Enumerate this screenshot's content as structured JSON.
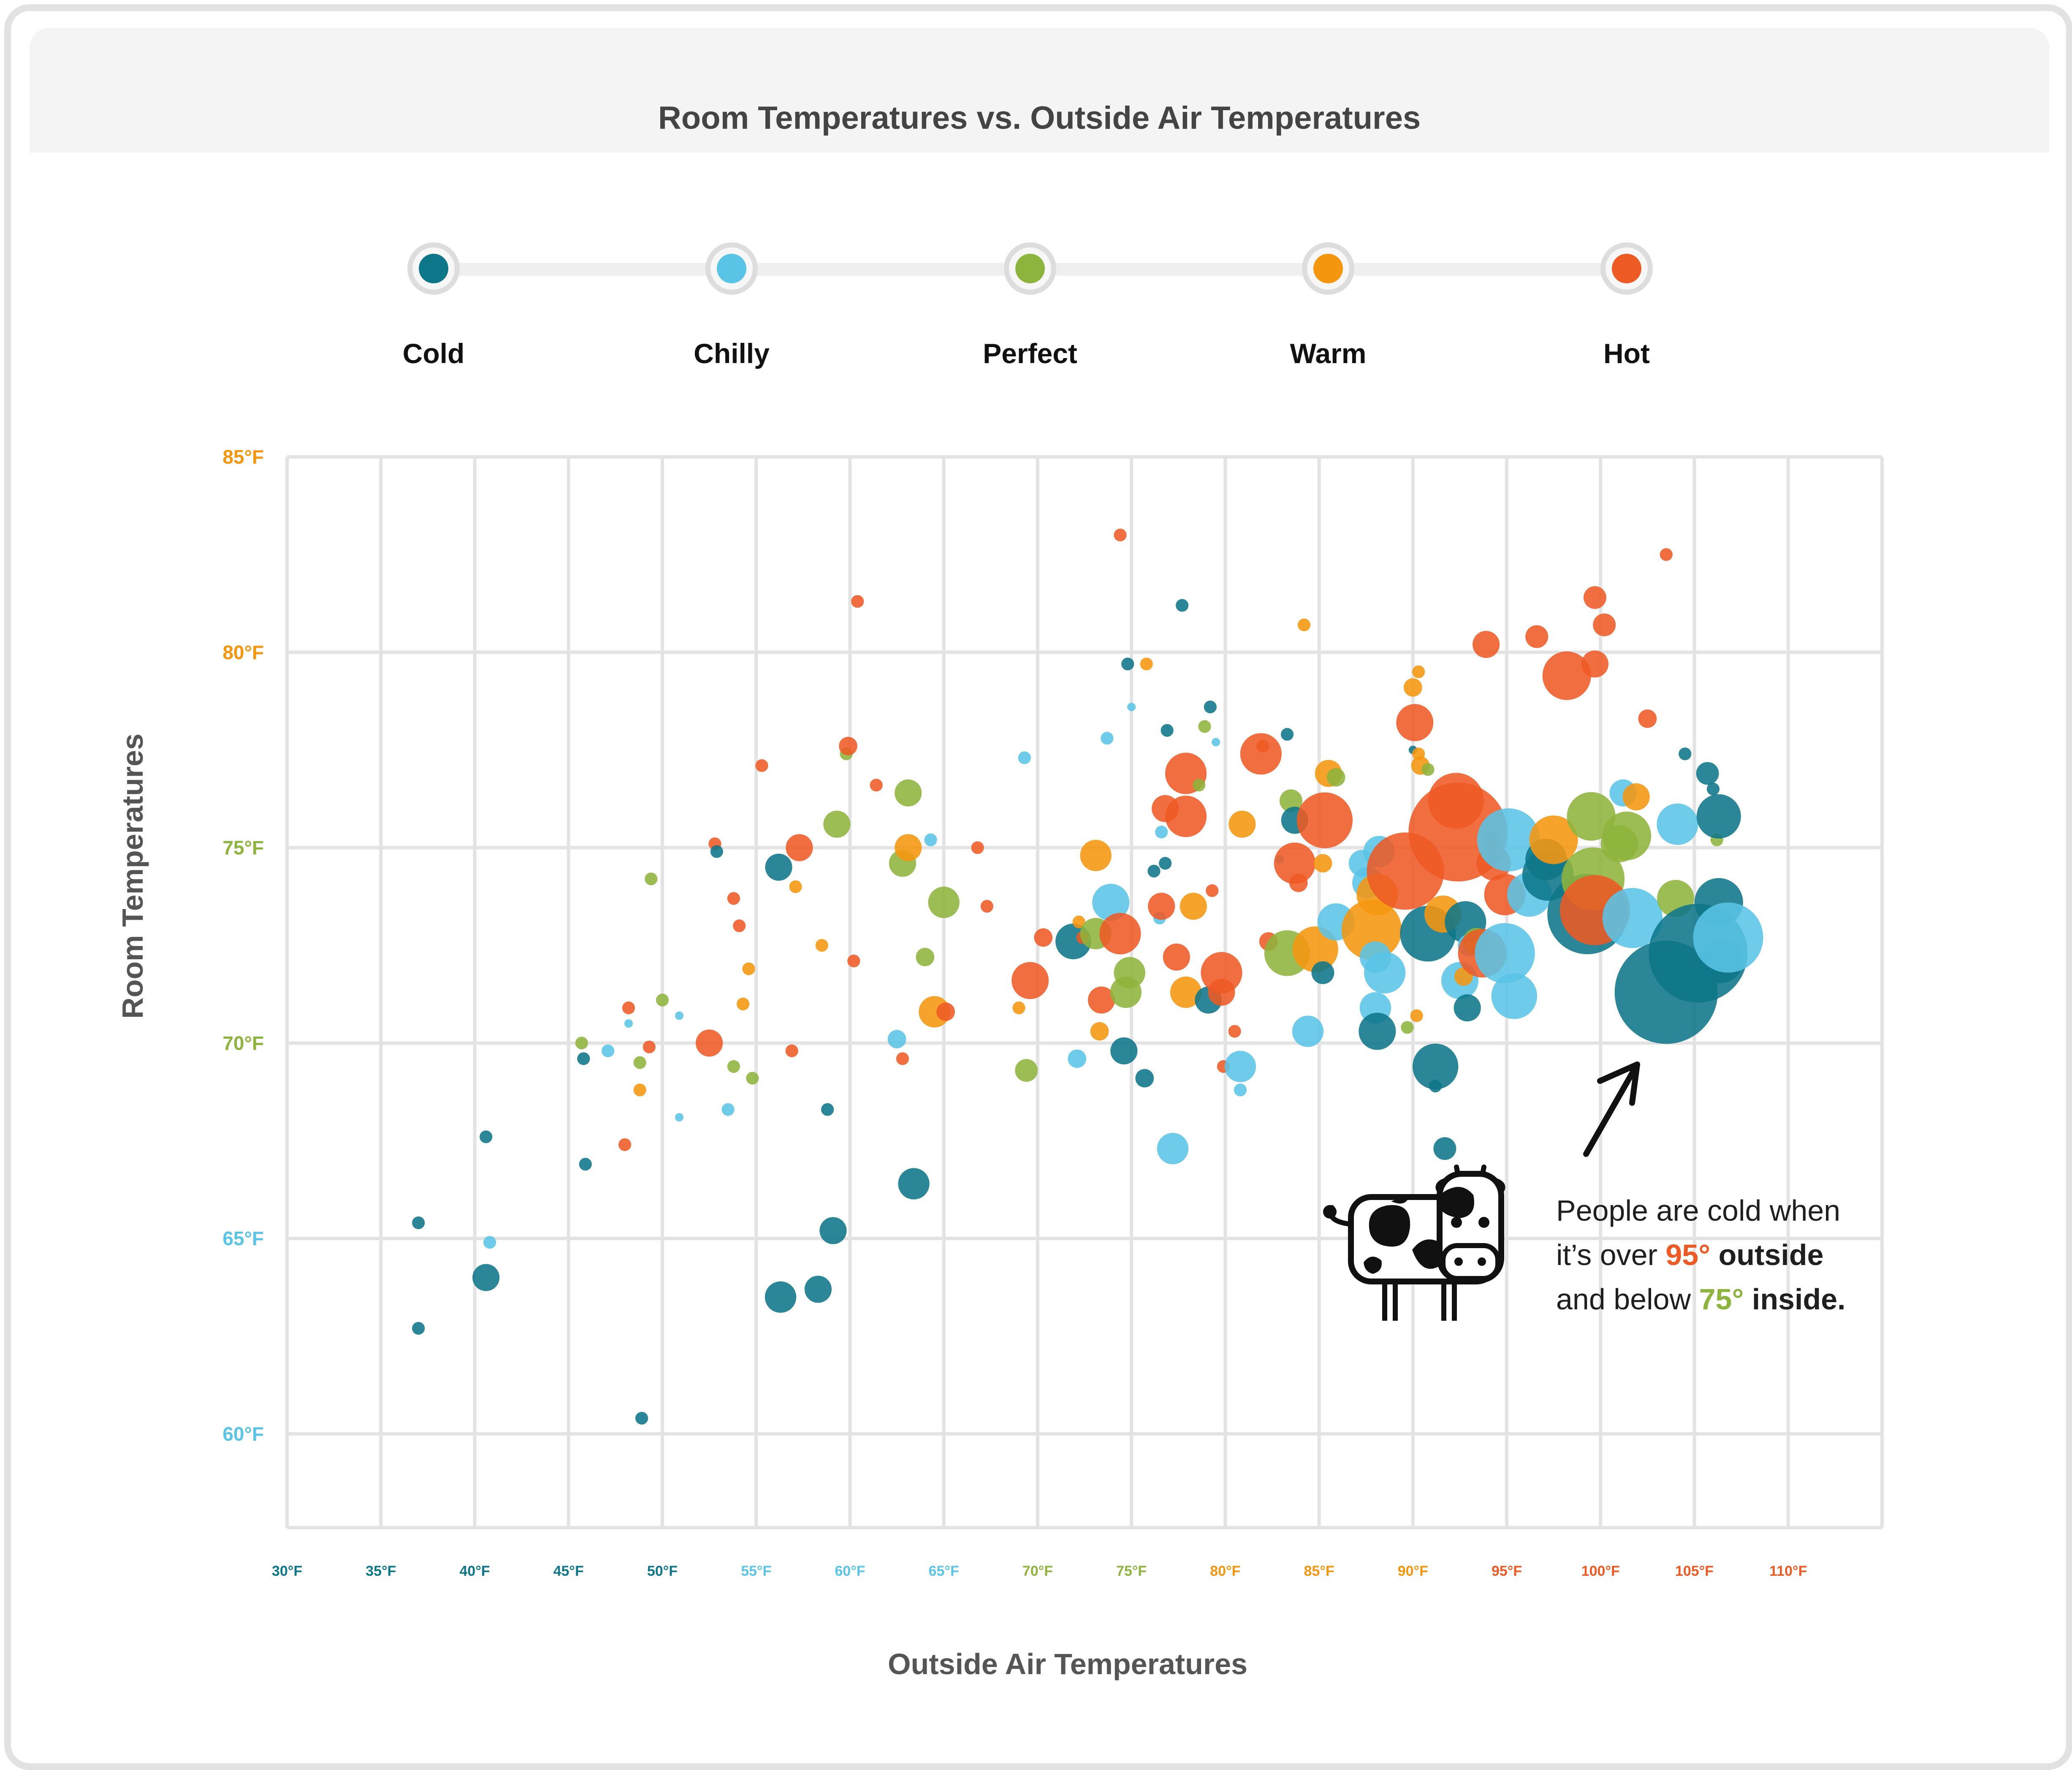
{
  "title": "Room Temperatures vs. Outside Air Temperatures",
  "legend": [
    {
      "label": "Cold",
      "color": "#0e7689"
    },
    {
      "label": "Chilly",
      "color": "#5ac4e6"
    },
    {
      "label": "Perfect",
      "color": "#8db43c"
    },
    {
      "label": "Warm",
      "color": "#f5960f"
    },
    {
      "label": "Hot",
      "color": "#ee5a24"
    }
  ],
  "annotation": {
    "line1": "People are cold when",
    "line2_pre": "it’s over ",
    "line2_hl": "95°",
    "line2_post": " outside",
    "line3_pre": "and below ",
    "line3_hl": "75°",
    "line3_post": " inside."
  },
  "chart_data": {
    "type": "scatter",
    "title": "Room Temperatures vs. Outside Air Temperatures",
    "xlabel": "Outside Air Temperatures",
    "ylabel": "Room Temperatures",
    "xlim": [
      30,
      115
    ],
    "ylim": [
      57.6,
      85
    ],
    "xticks": [
      {
        "v": 30,
        "label": "30°F",
        "color": "#0e7689"
      },
      {
        "v": 35,
        "label": "35°F",
        "color": "#0e7689"
      },
      {
        "v": 40,
        "label": "40°F",
        "color": "#0e7689"
      },
      {
        "v": 45,
        "label": "45°F",
        "color": "#0e7689"
      },
      {
        "v": 50,
        "label": "50°F",
        "color": "#0e7689"
      },
      {
        "v": 55,
        "label": "55°F",
        "color": "#5ac4e6"
      },
      {
        "v": 60,
        "label": "60°F",
        "color": "#5ac4e6"
      },
      {
        "v": 65,
        "label": "65°F",
        "color": "#5ac4e6"
      },
      {
        "v": 70,
        "label": "70°F",
        "color": "#8db43c"
      },
      {
        "v": 75,
        "label": "75°F",
        "color": "#8db43c"
      },
      {
        "v": 80,
        "label": "80°F",
        "color": "#f5960f"
      },
      {
        "v": 85,
        "label": "85°F",
        "color": "#f5960f"
      },
      {
        "v": 90,
        "label": "90°F",
        "color": "#f5960f"
      },
      {
        "v": 95,
        "label": "95°F",
        "color": "#ee5a24"
      },
      {
        "v": 100,
        "label": "100°F",
        "color": "#ee5a24"
      },
      {
        "v": 105,
        "label": "105°F",
        "color": "#ee5a24"
      },
      {
        "v": 110,
        "label": "110°F",
        "color": "#ee5a24"
      }
    ],
    "yticks": [
      {
        "v": 60,
        "label": "60°F",
        "color": "#5ac4e6"
      },
      {
        "v": 65,
        "label": "65°F",
        "color": "#5ac4e6"
      },
      {
        "v": 70,
        "label": "70°F",
        "color": "#8db43c"
      },
      {
        "v": 75,
        "label": "75°F",
        "color": "#8db43c"
      },
      {
        "v": 80,
        "label": "80°F",
        "color": "#f5960f"
      },
      {
        "v": 85,
        "label": "85°F",
        "color": "#f5960f"
      }
    ],
    "grid": true,
    "legend_placement": "top",
    "size_note": "bubble size is relative (1 = smallest)",
    "categories": [
      "Cold",
      "Chilly",
      "Perfect",
      "Warm",
      "Hot"
    ],
    "points": [
      [
        37,
        65.4,
        0,
        1
      ],
      [
        37,
        62.7,
        0,
        1
      ],
      [
        40.6,
        67.6,
        0,
        1
      ],
      [
        40.6,
        64,
        0,
        2
      ],
      [
        40.8,
        64.9,
        1,
        1
      ],
      [
        45.9,
        66.9,
        0,
        1
      ],
      [
        48.9,
        60.4,
        0,
        1
      ],
      [
        45.8,
        69.6,
        0,
        1
      ],
      [
        45.7,
        70,
        2,
        1
      ],
      [
        47.1,
        69.8,
        1,
        1
      ],
      [
        48.2,
        70.5,
        1,
        0.7
      ],
      [
        48.2,
        70.9,
        4,
        1
      ],
      [
        48.8,
        69.5,
        2,
        1
      ],
      [
        48.8,
        68.8,
        3,
        1
      ],
      [
        49.3,
        69.9,
        4,
        1
      ],
      [
        49.4,
        74.2,
        2,
        1
      ],
      [
        50,
        71.1,
        2,
        1
      ],
      [
        50.9,
        70.7,
        1,
        0.7
      ],
      [
        50.9,
        68.1,
        1,
        0.7
      ],
      [
        48,
        67.4,
        4,
        1
      ],
      [
        52.5,
        70,
        4,
        2
      ],
      [
        52.8,
        75.1,
        4,
        1
      ],
      [
        52.9,
        74.9,
        0,
        1
      ],
      [
        53.5,
        68.3,
        1,
        1
      ],
      [
        53.8,
        73.7,
        4,
        1
      ],
      [
        53.8,
        69.4,
        2,
        1
      ],
      [
        54.1,
        73,
        4,
        1
      ],
      [
        54.3,
        71,
        3,
        1
      ],
      [
        54.6,
        71.9,
        3,
        1
      ],
      [
        54.8,
        69.1,
        2,
        1
      ],
      [
        55.3,
        77.1,
        4,
        1
      ],
      [
        56.2,
        74.5,
        0,
        2
      ],
      [
        56.3,
        63.5,
        0,
        2.3
      ],
      [
        56.9,
        69.8,
        4,
        1
      ],
      [
        57.1,
        74,
        3,
        1
      ],
      [
        57.3,
        75,
        4,
        2
      ],
      [
        58.3,
        63.7,
        0,
        2
      ],
      [
        58.5,
        72.5,
        3,
        1
      ],
      [
        58.8,
        68.3,
        0,
        1
      ],
      [
        59.1,
        65.2,
        0,
        2
      ],
      [
        59.3,
        75.6,
        2,
        2
      ],
      [
        59.8,
        77.4,
        2,
        1
      ],
      [
        59.9,
        77.6,
        4,
        1.4
      ],
      [
        60.2,
        72.1,
        4,
        1
      ],
      [
        60.4,
        81.3,
        4,
        1
      ],
      [
        61.4,
        76.6,
        4,
        1
      ],
      [
        62.5,
        70.1,
        1,
        1.4
      ],
      [
        62.8,
        69.6,
        4,
        1
      ],
      [
        62.8,
        74.6,
        2,
        2
      ],
      [
        63.1,
        75,
        3,
        2
      ],
      [
        63.1,
        76.4,
        2,
        2
      ],
      [
        63.4,
        66.4,
        0,
        2.3
      ],
      [
        64,
        72.2,
        2,
        1.4
      ],
      [
        64.3,
        75.2,
        1,
        1
      ],
      [
        64.5,
        70.8,
        3,
        2.3
      ],
      [
        65,
        73.6,
        2,
        2.3
      ],
      [
        65.1,
        70.8,
        4,
        1.4
      ],
      [
        66.8,
        75,
        4,
        1
      ],
      [
        67.3,
        73.5,
        4,
        1
      ],
      [
        69,
        70.9,
        3,
        1
      ],
      [
        69.3,
        77.3,
        1,
        1
      ],
      [
        69.4,
        69.3,
        2,
        1.7
      ],
      [
        69.6,
        71.6,
        4,
        2.7
      ],
      [
        70.3,
        72.7,
        4,
        1.4
      ],
      [
        71.9,
        72.6,
        0,
        2.6
      ],
      [
        72.1,
        69.6,
        1,
        1.4
      ],
      [
        72.2,
        73.1,
        3,
        1
      ],
      [
        72.4,
        72.7,
        4,
        1
      ],
      [
        73.1,
        72.8,
        2,
        2.3
      ],
      [
        73.1,
        74.8,
        3,
        2.3
      ],
      [
        73.3,
        70.3,
        3,
        1.4
      ],
      [
        73.4,
        71.1,
        4,
        2
      ],
      [
        73.7,
        77.8,
        1,
        1
      ],
      [
        73.9,
        73.6,
        1,
        2.7
      ],
      [
        74.4,
        72.8,
        4,
        3
      ],
      [
        74.4,
        83,
        4,
        1
      ],
      [
        74.6,
        69.8,
        0,
        2
      ],
      [
        74.7,
        71.3,
        2,
        2.3
      ],
      [
        74.8,
        79.7,
        0,
        1
      ],
      [
        74.9,
        71.8,
        2,
        2.3
      ],
      [
        75,
        78.6,
        1,
        0.7
      ],
      [
        75.7,
        69.1,
        0,
        1.4
      ],
      [
        75.8,
        79.7,
        3,
        1
      ],
      [
        76.2,
        74.4,
        0,
        1
      ],
      [
        76.5,
        73.2,
        1,
        1
      ],
      [
        76.6,
        75.4,
        1,
        1
      ],
      [
        76.6,
        73.5,
        4,
        2
      ],
      [
        76.8,
        76,
        4,
        2
      ],
      [
        76.8,
        74.6,
        0,
        1
      ],
      [
        76.9,
        78,
        0,
        1
      ],
      [
        77.2,
        67.3,
        1,
        2.3
      ],
      [
        77.4,
        72.2,
        4,
        2
      ],
      [
        77.7,
        81.2,
        0,
        1
      ],
      [
        77.9,
        71.3,
        3,
        2.3
      ],
      [
        77.9,
        76.9,
        4,
        3
      ],
      [
        77.9,
        75.8,
        4,
        3
      ],
      [
        78.3,
        73.5,
        3,
        2
      ],
      [
        78.6,
        76.6,
        2,
        1
      ],
      [
        78.9,
        78.1,
        2,
        1
      ],
      [
        79.2,
        78.6,
        0,
        1
      ],
      [
        79.1,
        71.1,
        0,
        2
      ],
      [
        79.3,
        73.9,
        4,
        1
      ],
      [
        79.5,
        77.7,
        1,
        0.7
      ],
      [
        79.8,
        71.8,
        4,
        3
      ],
      [
        79.9,
        69.4,
        4,
        1
      ],
      [
        79.8,
        71.3,
        4,
        2
      ],
      [
        80.5,
        70.3,
        4,
        1
      ],
      [
        80.8,
        69.4,
        1,
        2.3
      ],
      [
        80.8,
        68.8,
        1,
        1
      ],
      [
        80.9,
        75.6,
        3,
        2
      ],
      [
        81.9,
        77.4,
        4,
        3
      ],
      [
        82,
        77.6,
        4,
        1
      ],
      [
        82.3,
        72.6,
        4,
        1.4
      ],
      [
        82.9,
        74.7,
        1,
        0.7
      ],
      [
        83.3,
        72.3,
        2,
        3.3
      ],
      [
        83.3,
        77.9,
        0,
        1
      ],
      [
        83.5,
        76.2,
        2,
        1.7
      ],
      [
        83.7,
        75.7,
        0,
        2
      ],
      [
        83.7,
        74.6,
        4,
        3
      ],
      [
        83.9,
        74.1,
        4,
        1.4
      ],
      [
        84.2,
        80.7,
        3,
        1
      ],
      [
        84.4,
        70.3,
        1,
        2.3
      ],
      [
        84.8,
        72.4,
        3,
        3.3
      ],
      [
        85.2,
        74.6,
        3,
        1.4
      ],
      [
        85.2,
        71.8,
        0,
        1.7
      ],
      [
        85.3,
        75.7,
        4,
        4
      ],
      [
        85.5,
        76.9,
        3,
        2
      ],
      [
        85.9,
        76.8,
        2,
        1.4
      ],
      [
        85.9,
        73.1,
        1,
        2.7
      ],
      [
        87.3,
        74.6,
        1,
        2
      ],
      [
        87.6,
        74.1,
        1,
        2.3
      ],
      [
        87.8,
        72.9,
        3,
        4.3
      ],
      [
        88,
        72.2,
        1,
        2.3
      ],
      [
        88,
        70.9,
        1,
        2.3
      ],
      [
        88.1,
        70.3,
        0,
        2.7
      ],
      [
        88.1,
        73.8,
        3,
        3
      ],
      [
        88.2,
        74.9,
        1,
        2.3
      ],
      [
        88.5,
        71.8,
        1,
        3
      ],
      [
        89.6,
        74.4,
        4,
        5.5
      ],
      [
        89.7,
        70.4,
        2,
        1
      ],
      [
        90,
        77.5,
        0,
        0.7
      ],
      [
        90,
        79.1,
        3,
        1.4
      ],
      [
        90.1,
        78.2,
        4,
        2.7
      ],
      [
        90.2,
        70.7,
        3,
        1
      ],
      [
        90.3,
        79.5,
        3,
        1
      ],
      [
        90.3,
        77.4,
        3,
        1
      ],
      [
        90.4,
        77.1,
        3,
        1.4
      ],
      [
        90.8,
        72.8,
        0,
        4
      ],
      [
        90.8,
        77,
        2,
        1
      ],
      [
        91.2,
        69.4,
        0,
        3.3
      ],
      [
        91.2,
        68.9,
        0,
        1
      ],
      [
        91.6,
        73.3,
        3,
        2.7
      ],
      [
        91.7,
        67.3,
        0,
        1.7
      ],
      [
        92.3,
        76.2,
        4,
        4
      ],
      [
        92.4,
        75.4,
        4,
        7
      ],
      [
        92.5,
        71.6,
        1,
        2.7
      ],
      [
        92.7,
        71.7,
        3,
        1.4
      ],
      [
        92.8,
        73.1,
        0,
        3
      ],
      [
        92.9,
        70.9,
        0,
        2
      ],
      [
        93,
        72.5,
        1,
        1.7
      ],
      [
        93.4,
        72.6,
        2,
        2
      ],
      [
        93.7,
        72.3,
        4,
        3.5
      ],
      [
        93.9,
        80.2,
        4,
        2
      ],
      [
        94.1,
        75.2,
        4,
        1.4
      ],
      [
        94.3,
        74.6,
        4,
        2.5
      ],
      [
        94.9,
        72.3,
        1,
        4.3
      ],
      [
        94.9,
        73.8,
        4,
        3
      ],
      [
        95.1,
        75.2,
        1,
        4.5
      ],
      [
        95.4,
        71.2,
        1,
        3.3
      ],
      [
        96.2,
        73.8,
        1,
        3.2
      ],
      [
        96.6,
        80.4,
        4,
        1.7
      ],
      [
        97.1,
        74.7,
        0,
        3
      ],
      [
        97.2,
        74.3,
        0,
        3.7
      ],
      [
        97.5,
        75.2,
        3,
        3.5
      ],
      [
        98.2,
        79.4,
        4,
        3.5
      ],
      [
        99.3,
        73.3,
        0,
        5.7
      ],
      [
        99.5,
        75.8,
        2,
        3.5
      ],
      [
        99.6,
        74.2,
        2,
        4.5
      ],
      [
        99.7,
        79.7,
        4,
        2
      ],
      [
        99.7,
        81.4,
        4,
        1.7
      ],
      [
        99.7,
        73.4,
        4,
        5
      ],
      [
        100.2,
        80.7,
        4,
        1.7
      ],
      [
        101,
        75.1,
        2,
        2.7
      ],
      [
        101.2,
        76.4,
        1,
        2
      ],
      [
        101.4,
        75.3,
        2,
        3.5
      ],
      [
        101.7,
        73.2,
        1,
        4.3
      ],
      [
        101.9,
        76.3,
        3,
        2
      ],
      [
        102.5,
        78.3,
        4,
        1.4
      ],
      [
        103.5,
        71.3,
        0,
        7.3
      ],
      [
        103.5,
        82.5,
        4,
        1
      ],
      [
        104,
        73.7,
        2,
        2.7
      ],
      [
        104.1,
        75.6,
        1,
        3
      ],
      [
        104.5,
        77.4,
        0,
        1
      ],
      [
        105.2,
        72.3,
        0,
        7
      ],
      [
        105.7,
        76.9,
        0,
        1.7
      ],
      [
        106,
        76.5,
        0,
        1
      ],
      [
        106.2,
        75.2,
        2,
        1
      ],
      [
        106.3,
        75.8,
        0,
        3.2
      ],
      [
        106.3,
        73.6,
        0,
        3.5
      ],
      [
        106.4,
        72.1,
        0,
        3.2
      ],
      [
        106.8,
        72.7,
        1,
        5
      ]
    ]
  }
}
